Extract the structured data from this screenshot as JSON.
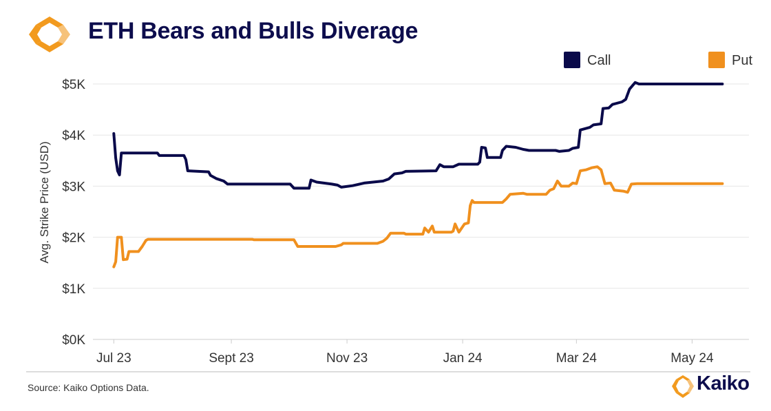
{
  "header": {
    "title": "ETH Bears and Bulls Diverage"
  },
  "footer": {
    "source": "Source: Kaiko Options Data.",
    "brand": "Kaiko"
  },
  "colors": {
    "call": "#0a0a4a",
    "put": "#f0901e",
    "logo_orange": "#f29a1e",
    "logo_light": "#f6c27a",
    "grid": "#e6e6e6",
    "axis": "#cccccc"
  },
  "chart_data": {
    "type": "line",
    "title": "ETH Bears and Bulls Diverage",
    "xlabel": "",
    "ylabel": "Avg. Strike Price (USD)",
    "ylim": [
      0,
      5000
    ],
    "xlim": [
      "2023-06-20",
      "2024-05-31"
    ],
    "x_ticks": [
      {
        "date": "2023-07-01",
        "label": "Jul 23"
      },
      {
        "date": "2023-09-01",
        "label": "Sept 23"
      },
      {
        "date": "2023-11-01",
        "label": "Nov 23"
      },
      {
        "date": "2024-01-01",
        "label": "Jan 24"
      },
      {
        "date": "2024-03-01",
        "label": "Mar 24"
      },
      {
        "date": "2024-05-01",
        "label": "May 24"
      }
    ],
    "y_ticks": [
      {
        "value": 0,
        "label": "$0K"
      },
      {
        "value": 1000,
        "label": "$1K"
      },
      {
        "value": 2000,
        "label": "$2K"
      },
      {
        "value": 3000,
        "label": "$3K"
      },
      {
        "value": 4000,
        "label": "$4K"
      },
      {
        "value": 5000,
        "label": "$5K"
      }
    ],
    "grid": "horizontal",
    "legend_position": "top-right",
    "series": [
      {
        "name": "Call",
        "color": "#0a0a4a",
        "points": [
          [
            "2023-07-01",
            4030
          ],
          [
            "2023-07-02",
            3550
          ],
          [
            "2023-07-03",
            3300
          ],
          [
            "2023-07-04",
            3220
          ],
          [
            "2023-07-05",
            3650
          ],
          [
            "2023-07-24",
            3650
          ],
          [
            "2023-07-25",
            3600
          ],
          [
            "2023-08-07",
            3600
          ],
          [
            "2023-08-08",
            3520
          ],
          [
            "2023-08-09",
            3300
          ],
          [
            "2023-08-20",
            3280
          ],
          [
            "2023-08-21",
            3210
          ],
          [
            "2023-08-24",
            3150
          ],
          [
            "2023-08-28",
            3100
          ],
          [
            "2023-08-30",
            3040
          ],
          [
            "2023-10-02",
            3040
          ],
          [
            "2023-10-04",
            2960
          ],
          [
            "2023-10-12",
            2960
          ],
          [
            "2023-10-13",
            3120
          ],
          [
            "2023-10-16",
            3080
          ],
          [
            "2023-10-24",
            3040
          ],
          [
            "2023-10-27",
            3020
          ],
          [
            "2023-10-29",
            2980
          ],
          [
            "2023-11-04",
            3010
          ],
          [
            "2023-11-10",
            3060
          ],
          [
            "2023-11-20",
            3100
          ],
          [
            "2023-11-23",
            3140
          ],
          [
            "2023-11-26",
            3240
          ],
          [
            "2023-11-30",
            3260
          ],
          [
            "2023-12-02",
            3290
          ],
          [
            "2023-12-18",
            3300
          ],
          [
            "2023-12-20",
            3420
          ],
          [
            "2023-12-22",
            3380
          ],
          [
            "2023-12-27",
            3380
          ],
          [
            "2023-12-30",
            3430
          ],
          [
            "2024-01-09",
            3430
          ],
          [
            "2024-01-10",
            3470
          ],
          [
            "2024-01-11",
            3760
          ],
          [
            "2024-01-13",
            3750
          ],
          [
            "2024-01-14",
            3560
          ],
          [
            "2024-01-21",
            3560
          ],
          [
            "2024-01-22",
            3700
          ],
          [
            "2024-01-24",
            3780
          ],
          [
            "2024-01-29",
            3760
          ],
          [
            "2024-02-02",
            3720
          ],
          [
            "2024-02-05",
            3700
          ],
          [
            "2024-02-19",
            3700
          ],
          [
            "2024-02-21",
            3680
          ],
          [
            "2024-02-26",
            3700
          ],
          [
            "2024-02-28",
            3740
          ],
          [
            "2024-03-02",
            3760
          ],
          [
            "2024-03-03",
            4100
          ],
          [
            "2024-03-08",
            4150
          ],
          [
            "2024-03-10",
            4200
          ],
          [
            "2024-03-14",
            4220
          ],
          [
            "2024-03-15",
            4520
          ],
          [
            "2024-03-18",
            4530
          ],
          [
            "2024-03-20",
            4600
          ],
          [
            "2024-03-25",
            4650
          ],
          [
            "2024-03-27",
            4700
          ],
          [
            "2024-03-29",
            4900
          ],
          [
            "2024-04-01",
            5030
          ],
          [
            "2024-04-03",
            5000
          ],
          [
            "2024-05-17",
            5000
          ]
        ]
      },
      {
        "name": "Put",
        "color": "#f0901e",
        "points": [
          [
            "2023-07-01",
            1420
          ],
          [
            "2023-07-02",
            1520
          ],
          [
            "2023-07-03",
            2000
          ],
          [
            "2023-07-05",
            2000
          ],
          [
            "2023-07-06",
            1560
          ],
          [
            "2023-07-08",
            1570
          ],
          [
            "2023-07-09",
            1720
          ],
          [
            "2023-07-14",
            1720
          ],
          [
            "2023-07-16",
            1820
          ],
          [
            "2023-07-18",
            1940
          ],
          [
            "2023-07-19",
            1960
          ],
          [
            "2023-09-12",
            1960
          ],
          [
            "2023-09-13",
            1950
          ],
          [
            "2023-10-04",
            1950
          ],
          [
            "2023-10-06",
            1820
          ],
          [
            "2023-10-26",
            1820
          ],
          [
            "2023-10-29",
            1850
          ],
          [
            "2023-10-30",
            1880
          ],
          [
            "2023-11-17",
            1880
          ],
          [
            "2023-11-20",
            1920
          ],
          [
            "2023-11-22",
            1980
          ],
          [
            "2023-11-24",
            2080
          ],
          [
            "2023-12-01",
            2080
          ],
          [
            "2023-12-02",
            2060
          ],
          [
            "2023-12-11",
            2060
          ],
          [
            "2023-12-12",
            2180
          ],
          [
            "2023-12-14",
            2100
          ],
          [
            "2023-12-16",
            2220
          ],
          [
            "2023-12-17",
            2100
          ],
          [
            "2023-12-26",
            2100
          ],
          [
            "2023-12-27",
            2120
          ],
          [
            "2023-12-28",
            2260
          ],
          [
            "2023-12-30",
            2100
          ],
          [
            "2024-01-02",
            2260
          ],
          [
            "2024-01-04",
            2280
          ],
          [
            "2024-01-05",
            2620
          ],
          [
            "2024-01-06",
            2720
          ],
          [
            "2024-01-07",
            2680
          ],
          [
            "2024-01-22",
            2680
          ],
          [
            "2024-01-24",
            2750
          ],
          [
            "2024-01-26",
            2840
          ],
          [
            "2024-02-02",
            2860
          ],
          [
            "2024-02-04",
            2840
          ],
          [
            "2024-02-14",
            2840
          ],
          [
            "2024-02-16",
            2920
          ],
          [
            "2024-02-18",
            2950
          ],
          [
            "2024-02-20",
            3100
          ],
          [
            "2024-02-22",
            3000
          ],
          [
            "2024-02-26",
            3000
          ],
          [
            "2024-02-28",
            3060
          ],
          [
            "2024-03-01",
            3050
          ],
          [
            "2024-03-03",
            3300
          ],
          [
            "2024-03-06",
            3320
          ],
          [
            "2024-03-09",
            3360
          ],
          [
            "2024-03-12",
            3380
          ],
          [
            "2024-03-14",
            3320
          ],
          [
            "2024-03-16",
            3050
          ],
          [
            "2024-03-19",
            3060
          ],
          [
            "2024-03-21",
            2920
          ],
          [
            "2024-03-26",
            2900
          ],
          [
            "2024-03-28",
            2880
          ],
          [
            "2024-03-30",
            3040
          ],
          [
            "2024-04-02",
            3050
          ],
          [
            "2024-05-17",
            3050
          ]
        ]
      }
    ]
  }
}
